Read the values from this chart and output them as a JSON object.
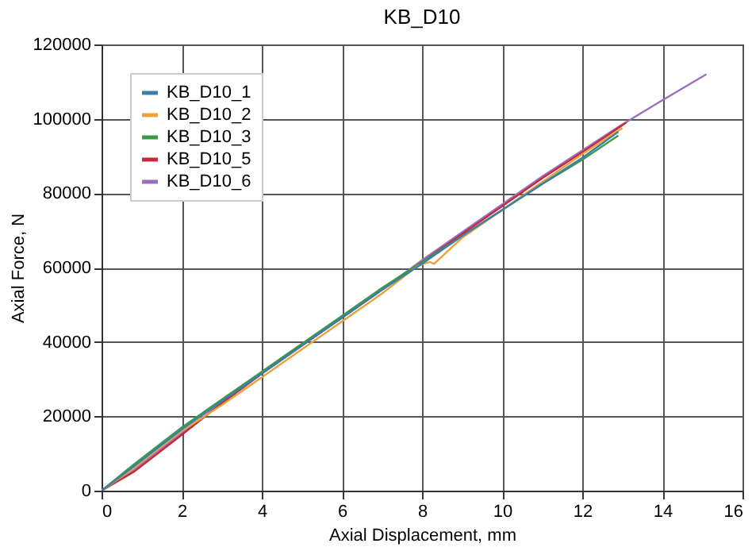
{
  "chart_data": {
    "type": "line",
    "title": "KB_D10",
    "xlabel": "Axial Displacement, mm",
    "ylabel": "Axial Force, N",
    "xlim": [
      0,
      16
    ],
    "xticks": [
      0,
      2,
      4,
      6,
      8,
      10,
      12,
      14,
      16
    ],
    "ylim": [
      0,
      120000
    ],
    "yticks": [
      0,
      20000,
      40000,
      60000,
      80000,
      100000,
      120000
    ],
    "grid": true,
    "legend": "top left",
    "marker": "none",
    "line_style": "solid",
    "series": [
      {
        "name": "KB_D10_1",
        "color": "#3a7fa8",
        "x": [
          0,
          0.8,
          2,
          3,
          4,
          5,
          6,
          7,
          8,
          9,
          10,
          11,
          12,
          12.9
        ],
        "values": [
          0,
          6500,
          16500,
          24000,
          31500,
          39000,
          46500,
          54000,
          61000,
          68500,
          75500,
          82500,
          89500,
          96500
        ]
      },
      {
        "name": "KB_D10_2",
        "color": "#e8a33a",
        "x": [
          0,
          0.8,
          2,
          3,
          4,
          5,
          6,
          7,
          7.9,
          8.2,
          8.3,
          9,
          10,
          11,
          12,
          13
        ],
        "values": [
          0,
          6000,
          16000,
          23000,
          30500,
          38000,
          45500,
          53000,
          60500,
          61500,
          61000,
          68000,
          75500,
          83000,
          90500,
          97500
        ]
      },
      {
        "name": "KB_D10_3",
        "color": "#3a9a48",
        "x": [
          0,
          0.8,
          2,
          3,
          4,
          5,
          6,
          7,
          8,
          9,
          10,
          11,
          12,
          12.9
        ],
        "values": [
          0,
          7000,
          17000,
          24500,
          32000,
          39500,
          47000,
          54500,
          61500,
          68500,
          75500,
          82500,
          89000,
          95500
        ]
      },
      {
        "name": "KB_D10_5",
        "color": "#c8283c",
        "x": [
          0,
          0.8,
          2,
          3,
          4,
          5,
          6,
          7,
          8,
          9,
          10,
          11,
          12,
          13.1
        ],
        "values": [
          0,
          5000,
          15000,
          23500,
          31500,
          39000,
          46500,
          54000,
          61500,
          69000,
          76500,
          84000,
          91000,
          99000
        ]
      },
      {
        "name": "KB_D10_6",
        "color": "#9a6fc0",
        "x": [
          0,
          0.8,
          2,
          3,
          4,
          5,
          6,
          7,
          8,
          9,
          10,
          11,
          12,
          13,
          14,
          15.1
        ],
        "values": [
          0,
          5500,
          15500,
          23500,
          31500,
          39000,
          46500,
          54000,
          62000,
          69500,
          77000,
          84500,
          91500,
          98500,
          105000,
          112000
        ]
      }
    ]
  }
}
